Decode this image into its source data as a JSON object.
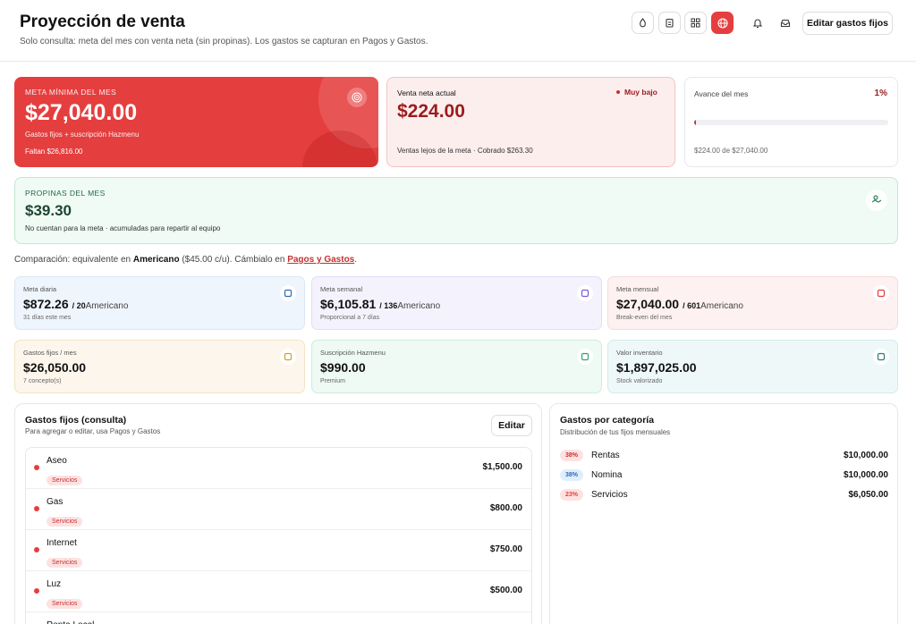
{
  "header": {
    "title": "Proyección de venta",
    "subtitle": "Solo consulta: meta del mes con venta neta (sin propinas). Los gastos se capturan en Pagos y Gastos.",
    "button": "Editar gastos fijos"
  },
  "goal_card": {
    "label": "META MÍNIMA DEL MES",
    "value": "$27,040.00",
    "note": "Gastos fijos + suscripción Hazmenu",
    "remaining": "Faltan $26,816.00"
  },
  "sales_card": {
    "label": "Venta neta actual",
    "status": "Muy bajo",
    "value": "$224.00",
    "note": "Ventas lejos de la meta · Cobrado $263.30"
  },
  "progress_card": {
    "label": "Avance del mes",
    "progress": {
      "value": 1,
      "label": "1%"
    },
    "note": "$224.00 de $27,040.00"
  },
  "tips_card": {
    "label": "PROPINAS DEL MES",
    "value": "$39.30",
    "note": "No cuentan para la meta · acumuladas para repartir al equipo"
  },
  "comparison": {
    "prefix": "Comparación: equivalente en",
    "product": "Americano",
    "price": "($45.00 c/u). Cámbialo en",
    "link": "Pagos y Gastos",
    "suffix": "."
  },
  "metrics": [
    {
      "label": "Meta diaria",
      "value": "$872.26",
      "count": "/ 20",
      "unit": "Americano",
      "note": "31 días este mes"
    },
    {
      "label": "Meta semanal",
      "value": "$6,105.81",
      "count": "/ 136",
      "unit": "Americano",
      "note": "Proporcional a 7 días"
    },
    {
      "label": "Meta mensual",
      "value": "$27,040.00",
      "count": "/ 601",
      "unit": "Americano",
      "note": "Break-even del mes"
    },
    {
      "label": "Gastos fijos / mes",
      "value": "$26,050.00",
      "note": "7 concepto(s)"
    },
    {
      "label": "Suscripción Hazmenu",
      "value": "$990.00",
      "note": "Premium"
    },
    {
      "label": "Valor inventario",
      "value": "$1,897,025.00",
      "note": "Stock valorizado"
    }
  ],
  "fixed_costs": {
    "title": "Gastos fijos (consulta)",
    "subtitle": "Para agregar o editar, usa Pagos y Gastos",
    "button": "Editar",
    "items": [
      {
        "name": "Aseo",
        "tag": "Servicios",
        "amount": "$1,500.00"
      },
      {
        "name": "Gas",
        "tag": "Servicios",
        "amount": "$800.00"
      },
      {
        "name": "Internet",
        "tag": "Servicios",
        "amount": "$750.00"
      },
      {
        "name": "Luz",
        "tag": "Servicios",
        "amount": "$500.00"
      },
      {
        "name": "Renta Local"
      }
    ]
  },
  "categories": {
    "title": "Gastos por categoría",
    "subtitle": "Distribución de tus fijos mensuales",
    "rows": [
      {
        "pct": "38%",
        "name": "Rentas",
        "amount": "$10,000.00"
      },
      {
        "pct": "38%",
        "name": "Nomina",
        "amount": "$10,000.00"
      },
      {
        "pct": "23%",
        "name": "Servicios",
        "amount": "$6,050.00"
      }
    ]
  }
}
